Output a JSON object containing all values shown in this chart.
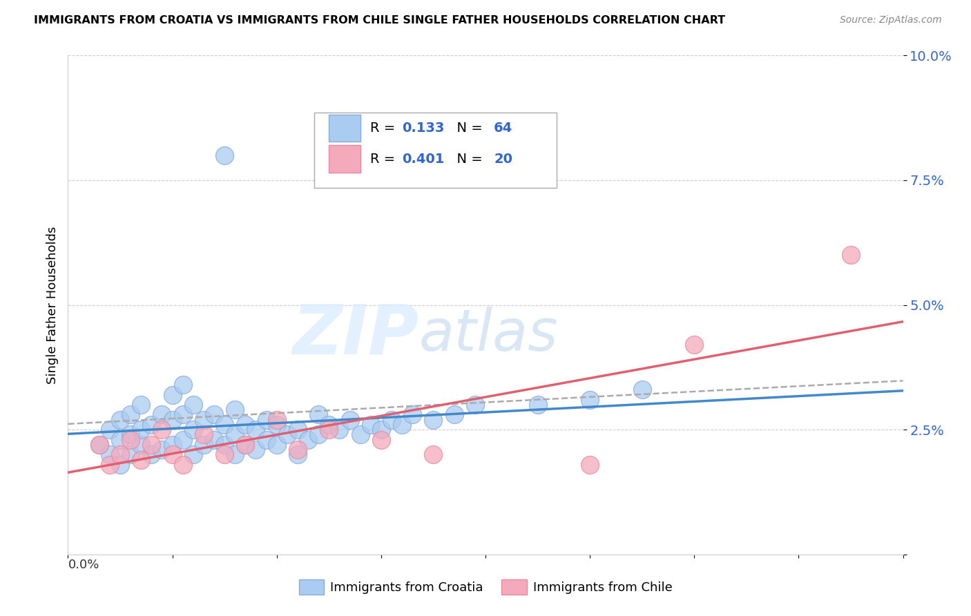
{
  "title": "IMMIGRANTS FROM CROATIA VS IMMIGRANTS FROM CHILE SINGLE FATHER HOUSEHOLDS CORRELATION CHART",
  "source": "Source: ZipAtlas.com",
  "ylabel": "Single Father Households",
  "xlim": [
    0.0,
    0.08
  ],
  "ylim": [
    0.0,
    0.1
  ],
  "yaxis_ticks": [
    0.0,
    0.025,
    0.05,
    0.075,
    0.1
  ],
  "yaxis_labels": [
    "",
    "2.5%",
    "5.0%",
    "7.5%",
    "10.0%"
  ],
  "legend_text_croatia": "R =  0.133   N = 64",
  "legend_text_chile": "R =  0.401   N = 20",
  "color_croatia": "#aaccf0",
  "color_chile": "#f5aabb",
  "color_croatia_edge": "#88aadd",
  "color_chile_edge": "#e888a0",
  "trendline_croatia_color": "#4488cc",
  "trendline_chile_color": "#e06070",
  "trendline_gray_color": "#aaaaaa",
  "watermark_zip": "ZIP",
  "watermark_atlas": "atlas",
  "legend_color": "#3366cc",
  "croatia_x": [
    0.003,
    0.004,
    0.004,
    0.005,
    0.005,
    0.005,
    0.006,
    0.006,
    0.006,
    0.007,
    0.007,
    0.007,
    0.008,
    0.008,
    0.009,
    0.009,
    0.01,
    0.01,
    0.01,
    0.011,
    0.011,
    0.011,
    0.012,
    0.012,
    0.012,
    0.013,
    0.013,
    0.014,
    0.014,
    0.015,
    0.015,
    0.016,
    0.016,
    0.016,
    0.017,
    0.017,
    0.018,
    0.018,
    0.019,
    0.019,
    0.02,
    0.02,
    0.021,
    0.022,
    0.022,
    0.023,
    0.024,
    0.024,
    0.025,
    0.026,
    0.027,
    0.028,
    0.029,
    0.03,
    0.031,
    0.032,
    0.033,
    0.035,
    0.037,
    0.039,
    0.045,
    0.05,
    0.055,
    0.015
  ],
  "croatia_y": [
    0.022,
    0.02,
    0.025,
    0.018,
    0.023,
    0.027,
    0.02,
    0.024,
    0.028,
    0.022,
    0.025,
    0.03,
    0.02,
    0.026,
    0.021,
    0.028,
    0.022,
    0.027,
    0.032,
    0.023,
    0.028,
    0.034,
    0.02,
    0.025,
    0.03,
    0.022,
    0.027,
    0.023,
    0.028,
    0.022,
    0.026,
    0.02,
    0.024,
    0.029,
    0.022,
    0.026,
    0.021,
    0.025,
    0.023,
    0.027,
    0.022,
    0.026,
    0.024,
    0.02,
    0.025,
    0.023,
    0.028,
    0.024,
    0.026,
    0.025,
    0.027,
    0.024,
    0.026,
    0.025,
    0.027,
    0.026,
    0.028,
    0.027,
    0.028,
    0.03,
    0.03,
    0.031,
    0.033,
    0.08
  ],
  "chile_x": [
    0.003,
    0.004,
    0.005,
    0.006,
    0.007,
    0.008,
    0.009,
    0.01,
    0.011,
    0.013,
    0.015,
    0.017,
    0.02,
    0.022,
    0.025,
    0.03,
    0.035,
    0.05,
    0.06,
    0.075
  ],
  "chile_y": [
    0.022,
    0.018,
    0.02,
    0.023,
    0.019,
    0.022,
    0.025,
    0.02,
    0.018,
    0.024,
    0.02,
    0.022,
    0.027,
    0.021,
    0.025,
    0.023,
    0.02,
    0.018,
    0.042,
    0.06
  ]
}
